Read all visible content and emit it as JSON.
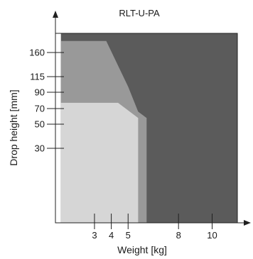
{
  "chart_data": {
    "type": "area",
    "title": "RLT-U-PA",
    "xlabel": "Weight [kg]",
    "ylabel": "Drop height [mm]",
    "x_ticks": [
      3,
      4,
      5,
      8,
      10
    ],
    "y_ticks": [
      30,
      50,
      70,
      90,
      115,
      160
    ],
    "colors": {
      "outer": "#5b5b5b",
      "middle": "#999999",
      "inner": "#d6d6d6",
      "frame": "#202020"
    },
    "regions": [
      {
        "fill": "outer",
        "points": [
          [
            1.0,
            186.5
          ],
          [
            12.0,
            186.5
          ],
          [
            12.0,
            0.0
          ],
          [
            1.0,
            0.0
          ]
        ]
      },
      {
        "fill": "middle",
        "points": [
          [
            1.0,
            176.0
          ],
          [
            1.0,
            0.0
          ],
          [
            6.1,
            0.0
          ],
          [
            6.1,
            58.0
          ],
          [
            5.6,
            66.0
          ],
          [
            5.0,
            99.0
          ],
          [
            3.7,
            176.0
          ]
        ]
      },
      {
        "fill": "inner",
        "points": [
          [
            1.0,
            77.0
          ],
          [
            1.0,
            0.0
          ],
          [
            5.6,
            0.0
          ],
          [
            5.6,
            58.0
          ],
          [
            4.4,
            77.0
          ]
        ]
      }
    ]
  }
}
